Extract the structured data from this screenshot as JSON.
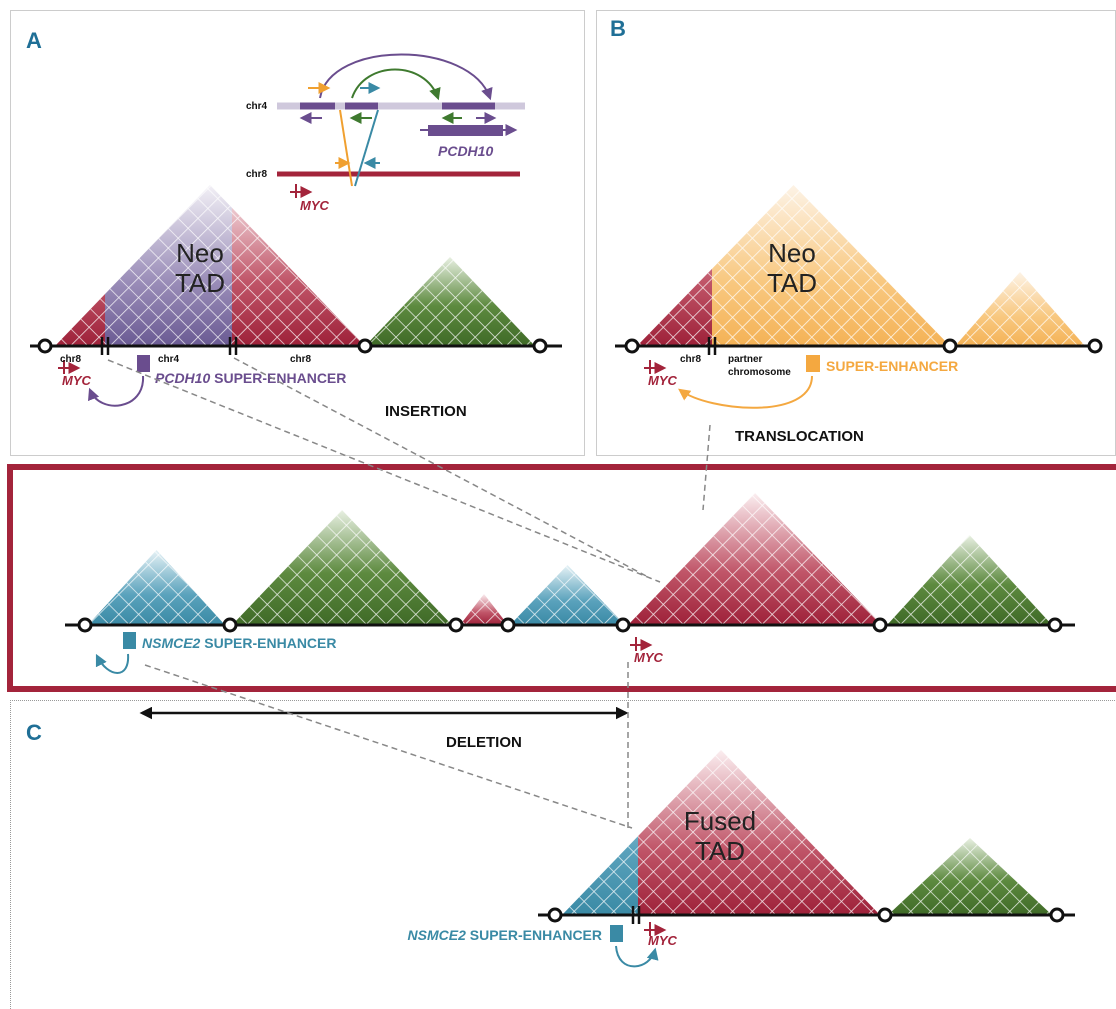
{
  "panel_a": {
    "label": "A",
    "inset": {
      "chr4": "chr4",
      "chr8": "chr8",
      "gene": "PCDH10",
      "myc": "MYC"
    },
    "tad": [
      "Neo",
      "TAD"
    ],
    "segments": [
      "chr8",
      "chr4",
      "chr8"
    ],
    "myc": "MYC",
    "enhancer_gene": "PCDH10",
    "enhancer": "SUPER-ENHANCER",
    "event": "INSERTION"
  },
  "panel_b": {
    "label": "B",
    "tad": [
      "Neo",
      "TAD"
    ],
    "segment": "chr8",
    "partner": [
      "partner",
      "chromosome"
    ],
    "myc": "MYC",
    "enhancer": "SUPER-ENHANCER",
    "event": "TRANSLOCATION"
  },
  "center": {
    "enhancer_gene": "NSMCE2",
    "enhancer": "SUPER-ENHANCER",
    "myc": "MYC",
    "event": "DELETION"
  },
  "panel_c": {
    "label": "C",
    "tad": [
      "Fused",
      "TAD"
    ],
    "enhancer_gene": "NSMCE2",
    "enhancer": "SUPER-ENHANCER",
    "myc": "MYC"
  }
}
